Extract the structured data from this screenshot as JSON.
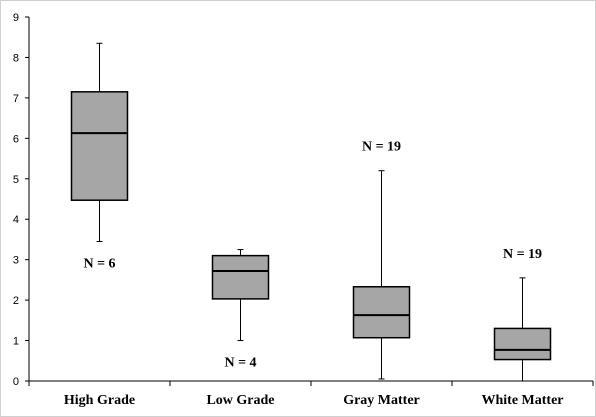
{
  "chart_data": {
    "type": "box",
    "categories": [
      "High Grade",
      "Low Grade",
      "Gray Matter",
      "White Matter"
    ],
    "boxes": [
      {
        "category": "High Grade",
        "min": 3.45,
        "q1": 4.47,
        "median": 6.13,
        "q3": 7.15,
        "max": 8.35,
        "n_label": "N = 6"
      },
      {
        "category": "Low Grade",
        "min": 1.0,
        "q1": 2.03,
        "median": 2.72,
        "q3": 3.1,
        "max": 3.25,
        "n_label": "N = 4"
      },
      {
        "category": "Gray Matter",
        "min": 0.05,
        "q1": 1.07,
        "median": 1.63,
        "q3": 2.33,
        "max": 5.2,
        "n_label": "N = 19"
      },
      {
        "category": "White Matter",
        "min": 0.0,
        "q1": 0.53,
        "median": 0.77,
        "q3": 1.3,
        "max": 2.55,
        "n_label": "N = 19"
      }
    ],
    "n_label_placement": [
      "below",
      "below",
      "above",
      "above"
    ],
    "yticks": [
      "0",
      "1",
      "2",
      "3",
      "4",
      "5",
      "6",
      "7",
      "8",
      "9"
    ],
    "ylim": [
      0,
      9
    ],
    "title": "",
    "xlabel": "",
    "ylabel": "",
    "grid": false,
    "box_fill": "#a6a6a6",
    "line_color": "#000000"
  }
}
